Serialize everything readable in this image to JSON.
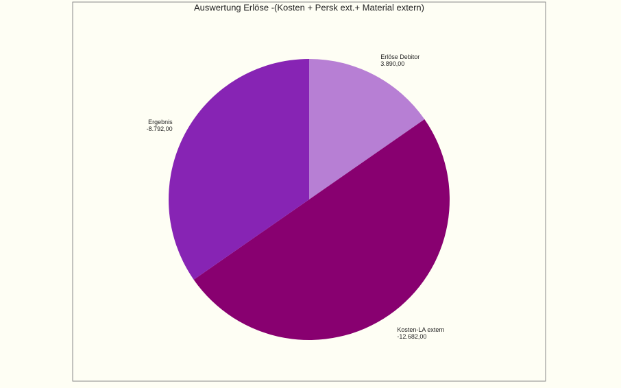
{
  "chart_data": {
    "type": "pie",
    "title": "Auswertung Erlöse -(Kosten + Persk ext.+ Material extern)",
    "categories": [
      "Erlöse Debitor",
      "Kosten-LA extern",
      "Ergebnis"
    ],
    "values": [
      3890,
      -12682,
      -8792
    ],
    "value_labels": [
      "3.890,00",
      "-12.682,00",
      "-8.792,00"
    ],
    "colors": [
      "#b77fd4",
      "#880070",
      "#8724b4"
    ]
  }
}
